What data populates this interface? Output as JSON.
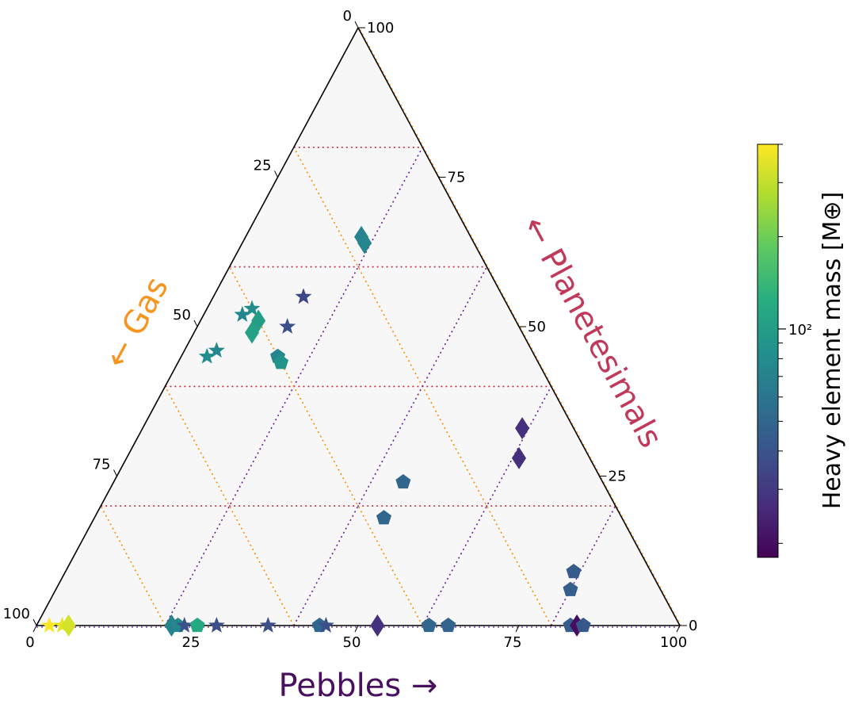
{
  "chart_data": {
    "type": "scatter",
    "subtype": "ternary",
    "axes": {
      "pebbles": {
        "label": "Pebbles →",
        "color": "#4a1060",
        "ticks": [
          "0",
          "25",
          "50",
          "75",
          "100"
        ]
      },
      "planetesimals": {
        "label": "← Planetesimals",
        "color": "#c0395a",
        "ticks": [
          "0",
          "25",
          "50",
          "75",
          "100"
        ]
      },
      "gas": {
        "label": "← Gas",
        "color": "#f7941d",
        "ticks": [
          "0",
          "25",
          "50",
          "75",
          "100"
        ]
      }
    },
    "grid": true,
    "grid_colors": {
      "pebbles": "#6a1b9a",
      "planetesimals": "#c62840",
      "gas": "#ff8c00"
    },
    "colorbar": {
      "label": "Heavy element mass [M⊕]",
      "scale": "log",
      "colormap": "viridis",
      "range": [
        18,
        400
      ],
      "tick_label": "10²",
      "tick_value": 100
    },
    "points": [
      {
        "marker": "star",
        "pebbles": 2,
        "planetesimals": 0,
        "gas": 98,
        "mass": 400
      },
      {
        "marker": "star",
        "pebbles": 4,
        "planetesimals": 0,
        "gas": 96,
        "mass": 360
      },
      {
        "marker": "diamond",
        "pebbles": 5,
        "planetesimals": 0,
        "gas": 95,
        "mass": 330
      },
      {
        "marker": "diamond",
        "pebbles": 21,
        "planetesimals": 0,
        "gas": 79,
        "mass": 70
      },
      {
        "marker": "pentagon",
        "pebbles": 22,
        "planetesimals": 0,
        "gas": 78,
        "mass": 75
      },
      {
        "marker": "star",
        "pebbles": 23,
        "planetesimals": 0,
        "gas": 77,
        "mass": 40
      },
      {
        "marker": "pentagon",
        "pebbles": 25,
        "planetesimals": 0,
        "gas": 75,
        "mass": 115
      },
      {
        "marker": "star",
        "pebbles": 28,
        "planetesimals": 0,
        "gas": 72,
        "mass": 38
      },
      {
        "marker": "star",
        "pebbles": 36,
        "planetesimals": 0,
        "gas": 64,
        "mass": 38
      },
      {
        "marker": "pentagon",
        "pebbles": 44,
        "planetesimals": 0,
        "gas": 56,
        "mass": 50
      },
      {
        "marker": "star",
        "pebbles": 45,
        "planetesimals": 0,
        "gas": 55,
        "mass": 38
      },
      {
        "marker": "diamond",
        "pebbles": 53,
        "planetesimals": 0,
        "gas": 47,
        "mass": 28
      },
      {
        "marker": "pentagon",
        "pebbles": 61,
        "planetesimals": 0,
        "gas": 39,
        "mass": 50
      },
      {
        "marker": "pentagon",
        "pebbles": 64,
        "planetesimals": 0,
        "gas": 36,
        "mass": 48
      },
      {
        "marker": "pentagon",
        "pebbles": 83,
        "planetesimals": 0,
        "gas": 17,
        "mass": 45
      },
      {
        "marker": "diamond",
        "pebbles": 84,
        "planetesimals": 0,
        "gas": 16,
        "mass": 20
      },
      {
        "marker": "pentagon",
        "pebbles": 85,
        "planetesimals": 0,
        "gas": 15,
        "mass": 42
      },
      {
        "marker": "pentagon",
        "pebbles": 79,
        "planetesimals": 9,
        "gas": 12,
        "mass": 44
      },
      {
        "marker": "pentagon",
        "pebbles": 80,
        "planetesimals": 6,
        "gas": 14,
        "mass": 45
      },
      {
        "marker": "diamond",
        "pebbles": 59,
        "planetesimals": 33,
        "gas": 8,
        "mass": 27
      },
      {
        "marker": "diamond",
        "pebbles": 61,
        "planetesimals": 28,
        "gas": 11,
        "mass": 27
      },
      {
        "marker": "pentagon",
        "pebbles": 45,
        "planetesimals": 24,
        "gas": 31,
        "mass": 50
      },
      {
        "marker": "pentagon",
        "pebbles": 45,
        "planetesimals": 18,
        "gas": 37,
        "mass": 50
      },
      {
        "marker": "diamond",
        "pebbles": 18,
        "planetesimals": 65,
        "gas": 17,
        "mass": 70
      },
      {
        "marker": "diamond",
        "pebbles": 19,
        "planetesimals": 64,
        "gas": 17,
        "mass": 75
      },
      {
        "marker": "star",
        "pebbles": 14,
        "planetesimals": 55,
        "gas": 31,
        "mass": 35
      },
      {
        "marker": "star",
        "pebbles": 14,
        "planetesimals": 50,
        "gas": 36,
        "mass": 38
      },
      {
        "marker": "star",
        "pebbles": 7,
        "planetesimals": 53,
        "gas": 40,
        "mass": 80
      },
      {
        "marker": "star",
        "pebbles": 6,
        "planetesimals": 52,
        "gas": 42,
        "mass": 75
      },
      {
        "marker": "diamond",
        "pebbles": 9,
        "planetesimals": 51,
        "gas": 40,
        "mass": 100
      },
      {
        "marker": "diamond",
        "pebbles": 9,
        "planetesimals": 49,
        "gas": 42,
        "mass": 105
      },
      {
        "marker": "star",
        "pebbles": 5,
        "planetesimals": 46,
        "gas": 49,
        "mass": 75
      },
      {
        "marker": "star",
        "pebbles": 4,
        "planetesimals": 45,
        "gas": 51,
        "mass": 80
      },
      {
        "marker": "pentagon",
        "pebbles": 15,
        "planetesimals": 45,
        "gas": 40,
        "mass": 75
      },
      {
        "marker": "pentagon",
        "pebbles": 16,
        "planetesimals": 44,
        "gas": 40,
        "mass": 90
      }
    ]
  }
}
